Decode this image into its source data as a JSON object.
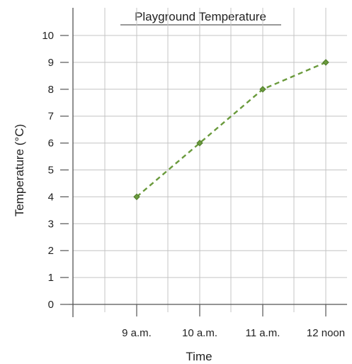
{
  "chart_data": {
    "type": "line",
    "title": "Playground Temperature",
    "xlabel": "Time",
    "ylabel": "Temperature (°C)",
    "categories": [
      "9 a.m.",
      "10 a.m.",
      "11 a.m.",
      "12 noon"
    ],
    "series": [
      {
        "values": [
          4,
          6,
          8,
          9
        ]
      }
    ],
    "ylim": [
      0,
      10
    ],
    "yticks": [
      0,
      1,
      2,
      3,
      4,
      5,
      6,
      7,
      8,
      9,
      10
    ],
    "grid": true,
    "colors": {
      "line": "#6a9a3c",
      "marker": "#6a9a3c",
      "grid": "#c4c4c4",
      "axis": "#555555"
    }
  }
}
